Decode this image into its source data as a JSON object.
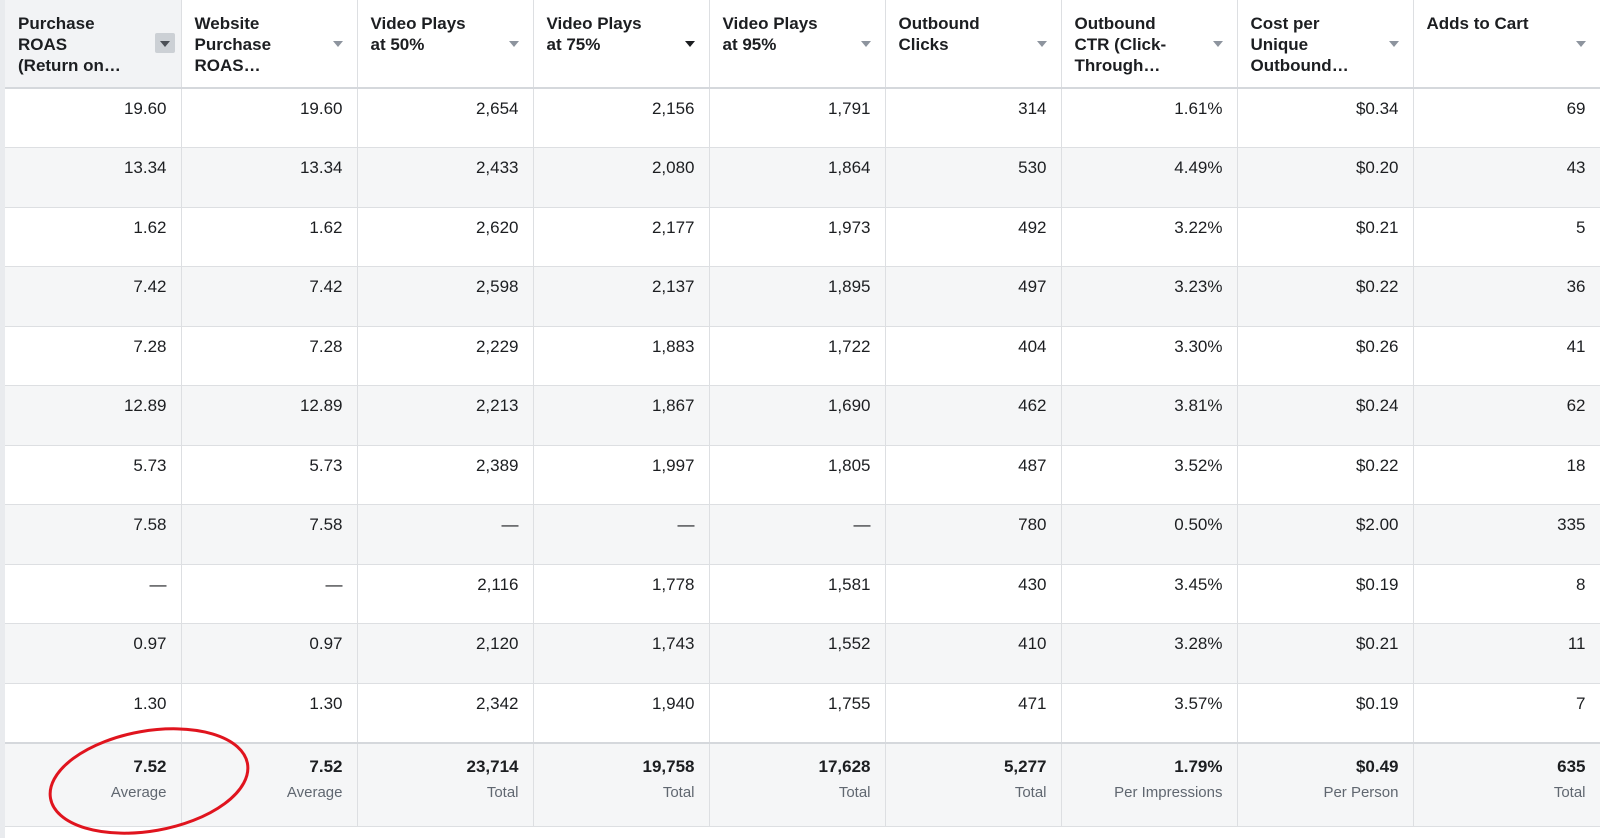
{
  "table": {
    "headers": [
      [
        "Purchase",
        "ROAS",
        "(Return on…"
      ],
      [
        "Website",
        "Purchase",
        "ROAS…"
      ],
      [
        "Video Plays",
        "at 50%"
      ],
      [
        "Video Plays",
        "at 75%"
      ],
      [
        "Video Plays",
        "at 95%"
      ],
      [
        "Outbound",
        "Clicks"
      ],
      [
        "Outbound",
        "CTR (Click-",
        "Through…"
      ],
      [
        "Cost per",
        "Unique",
        "Outbound…"
      ],
      [
        "Adds to Cart"
      ]
    ],
    "rows": [
      [
        "19.60",
        "19.60",
        "2,654",
        "2,156",
        "1,791",
        "314",
        "1.61%",
        "$0.34",
        "69"
      ],
      [
        "13.34",
        "13.34",
        "2,433",
        "2,080",
        "1,864",
        "530",
        "4.49%",
        "$0.20",
        "43"
      ],
      [
        "1.62",
        "1.62",
        "2,620",
        "2,177",
        "1,973",
        "492",
        "3.22%",
        "$0.21",
        "5"
      ],
      [
        "7.42",
        "7.42",
        "2,598",
        "2,137",
        "1,895",
        "497",
        "3.23%",
        "$0.22",
        "36"
      ],
      [
        "7.28",
        "7.28",
        "2,229",
        "1,883",
        "1,722",
        "404",
        "3.30%",
        "$0.26",
        "41"
      ],
      [
        "12.89",
        "12.89",
        "2,213",
        "1,867",
        "1,690",
        "462",
        "3.81%",
        "$0.24",
        "62"
      ],
      [
        "5.73",
        "5.73",
        "2,389",
        "1,997",
        "1,805",
        "487",
        "3.52%",
        "$0.22",
        "18"
      ],
      [
        "7.58",
        "7.58",
        "—",
        "—",
        "—",
        "780",
        "0.50%",
        "$2.00",
        "335"
      ],
      [
        "—",
        "—",
        "2,116",
        "1,778",
        "1,581",
        "430",
        "3.45%",
        "$0.19",
        "8"
      ],
      [
        "0.97",
        "0.97",
        "2,120",
        "1,743",
        "1,552",
        "410",
        "3.28%",
        "$0.21",
        "11"
      ],
      [
        "1.30",
        "1.30",
        "2,342",
        "1,940",
        "1,755",
        "471",
        "3.57%",
        "$0.19",
        "7"
      ]
    ],
    "summary": [
      {
        "value": "7.52",
        "label": "Average"
      },
      {
        "value": "7.52",
        "label": "Average"
      },
      {
        "value": "23,714",
        "label": "Total"
      },
      {
        "value": "19,758",
        "label": "Total"
      },
      {
        "value": "17,628",
        "label": "Total"
      },
      {
        "value": "5,277",
        "label": "Total"
      },
      {
        "value": "1.79%",
        "label": "Per Impressions"
      },
      {
        "value": "$0.49",
        "label": "Per Person"
      },
      {
        "value": "635",
        "label": "Total"
      }
    ]
  }
}
